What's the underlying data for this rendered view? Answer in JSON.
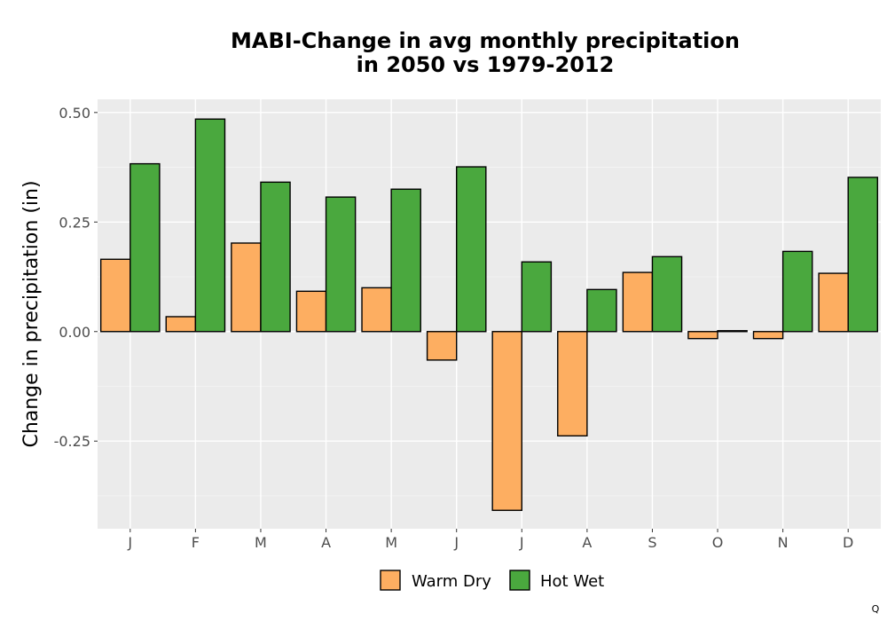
{
  "chart_data": {
    "type": "bar",
    "title": "MABI-Change in avg monthly precipitation",
    "subtitle": "in 2050 vs 1979-2012",
    "xlabel": "",
    "ylabel": "Change in precipitation (in)",
    "categories": [
      "J",
      "F",
      "M",
      "A",
      "M",
      "J",
      "J",
      "A",
      "S",
      "O",
      "N",
      "D"
    ],
    "series": [
      {
        "name": "Warm Dry",
        "color": "#fdae61",
        "values": [
          0.165,
          0.034,
          0.202,
          0.092,
          0.1,
          -0.065,
          -0.408,
          -0.238,
          0.135,
          -0.016,
          -0.016,
          0.133
        ]
      },
      {
        "name": "Hot Wet",
        "color": "#4aa83e",
        "values": [
          0.383,
          0.485,
          0.341,
          0.307,
          0.325,
          0.376,
          0.159,
          0.096,
          0.171,
          0.002,
          0.183,
          0.352
        ]
      }
    ],
    "ylim": [
      -0.45,
      0.53
    ],
    "yticks": [
      -0.25,
      0.0,
      0.25,
      0.5
    ],
    "ytick_labels": [
      "-0.25",
      "0.00",
      "0.25",
      "0.50"
    ],
    "grid": true,
    "panel_background": "#ebebeb",
    "legend_position": "bottom"
  },
  "footnote": "Q"
}
